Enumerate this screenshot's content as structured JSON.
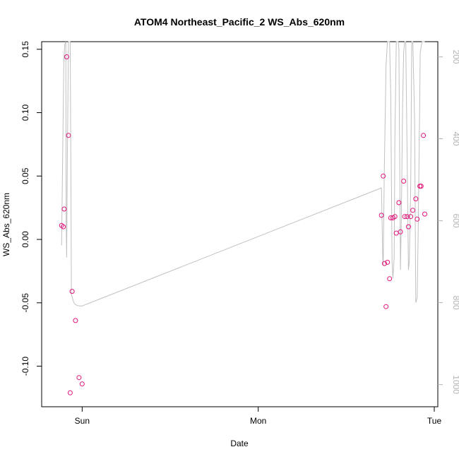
{
  "chart_data": {
    "type": "line",
    "title": "ATOM4 Northeast_Pacific_2 WS_Abs_620nm",
    "xlabel": "Date",
    "ylabel": "WS_Abs_620nm",
    "x_unit": "days (0 = Sun 00:00)",
    "xlim": [
      -0.23,
      2.02
    ],
    "ylim": [
      -0.132,
      0.156
    ],
    "ylim_right": [
      1054,
      163
    ],
    "x_ticks": [
      {
        "value": 0,
        "label": "Sun"
      },
      {
        "value": 1,
        "label": "Mon"
      },
      {
        "value": 2,
        "label": "Tue"
      }
    ],
    "y_ticks": [
      {
        "value": 0.15,
        "label": "0.15"
      },
      {
        "value": 0.1,
        "label": "0.10"
      },
      {
        "value": 0.05,
        "label": "0.05"
      },
      {
        "value": 0.0,
        "label": "0.00"
      },
      {
        "value": -0.05,
        "label": "-0.05"
      },
      {
        "value": -0.1,
        "label": "-0.10"
      }
    ],
    "y_ticks_right": [
      {
        "value": 200,
        "label": "200"
      },
      {
        "value": 400,
        "label": "400"
      },
      {
        "value": 600,
        "label": "600"
      },
      {
        "value": 800,
        "label": "800"
      },
      {
        "value": 1000,
        "label": "1000"
      }
    ],
    "grid": false,
    "colors": {
      "points": "#e2137a",
      "depth_line": "#c0c0c0"
    },
    "series": [
      {
        "marker": "circle",
        "axis": "left",
        "points": [
          [
            -0.117,
            0.011
          ],
          [
            -0.107,
            0.01
          ],
          [
            -0.102,
            0.024
          ],
          [
            -0.088,
            0.144
          ],
          [
            -0.078,
            0.082
          ],
          [
            -0.068,
            -0.121
          ],
          [
            -0.057,
            -0.041
          ],
          [
            -0.038,
            -0.064
          ],
          [
            -0.018,
            -0.109
          ],
          [
            0.0,
            -0.114
          ],
          [
            1.7,
            0.019
          ],
          [
            1.71,
            0.05
          ],
          [
            1.717,
            -0.019
          ],
          [
            1.726,
            -0.053
          ],
          [
            1.734,
            -0.018
          ],
          [
            1.746,
            -0.031
          ],
          [
            1.753,
            0.017
          ],
          [
            1.765,
            0.017
          ],
          [
            1.776,
            0.018
          ],
          [
            1.784,
            0.005
          ],
          [
            1.799,
            0.029
          ],
          [
            1.808,
            0.006
          ],
          [
            1.826,
            0.046
          ],
          [
            1.832,
            0.018
          ],
          [
            1.846,
            0.018
          ],
          [
            1.853,
            0.01
          ],
          [
            1.866,
            0.018
          ],
          [
            1.878,
            0.023
          ],
          [
            1.895,
            0.032
          ],
          [
            1.903,
            0.016
          ],
          [
            1.918,
            0.042
          ],
          [
            1.925,
            0.042
          ],
          [
            1.938,
            0.082
          ],
          [
            1.946,
            0.02
          ]
        ]
      },
      {
        "type": "line",
        "axis": "right",
        "points": [
          [
            -0.117,
            660
          ],
          [
            -0.104,
            210
          ],
          [
            -0.099,
            170
          ],
          [
            -0.093,
            163
          ],
          [
            -0.091,
            600
          ],
          [
            -0.088,
            690
          ],
          [
            -0.084,
            450
          ],
          [
            -0.078,
            163
          ],
          [
            -0.073,
            163
          ],
          [
            -0.068,
            163
          ],
          [
            -0.064,
            480
          ],
          [
            -0.061,
            780
          ],
          [
            -0.047,
            800
          ],
          [
            -0.038,
            805
          ],
          [
            -0.018,
            808
          ],
          [
            0.0,
            808
          ],
          [
            1.7,
            520
          ],
          [
            1.707,
            690
          ],
          [
            1.71,
            710
          ],
          [
            1.716,
            480
          ],
          [
            1.726,
            220
          ],
          [
            1.734,
            163
          ],
          [
            1.746,
            163
          ],
          [
            1.753,
            300
          ],
          [
            1.76,
            700
          ],
          [
            1.765,
            740
          ],
          [
            1.772,
            690
          ],
          [
            1.776,
            400
          ],
          [
            1.784,
            163
          ],
          [
            1.795,
            163
          ],
          [
            1.799,
            180
          ],
          [
            1.808,
            720
          ],
          [
            1.813,
            590
          ],
          [
            1.82,
            320
          ],
          [
            1.826,
            190
          ],
          [
            1.832,
            163
          ],
          [
            1.838,
            163
          ],
          [
            1.846,
            450
          ],
          [
            1.853,
            720
          ],
          [
            1.858,
            700
          ],
          [
            1.866,
            520
          ],
          [
            1.872,
            163
          ],
          [
            1.878,
            163
          ],
          [
            1.888,
            350
          ],
          [
            1.895,
            800
          ],
          [
            1.903,
            788
          ],
          [
            1.908,
            640
          ],
          [
            1.915,
            400
          ],
          [
            1.92,
            190
          ],
          [
            1.93,
            163
          ],
          [
            1.946,
            163
          ]
        ]
      }
    ]
  }
}
